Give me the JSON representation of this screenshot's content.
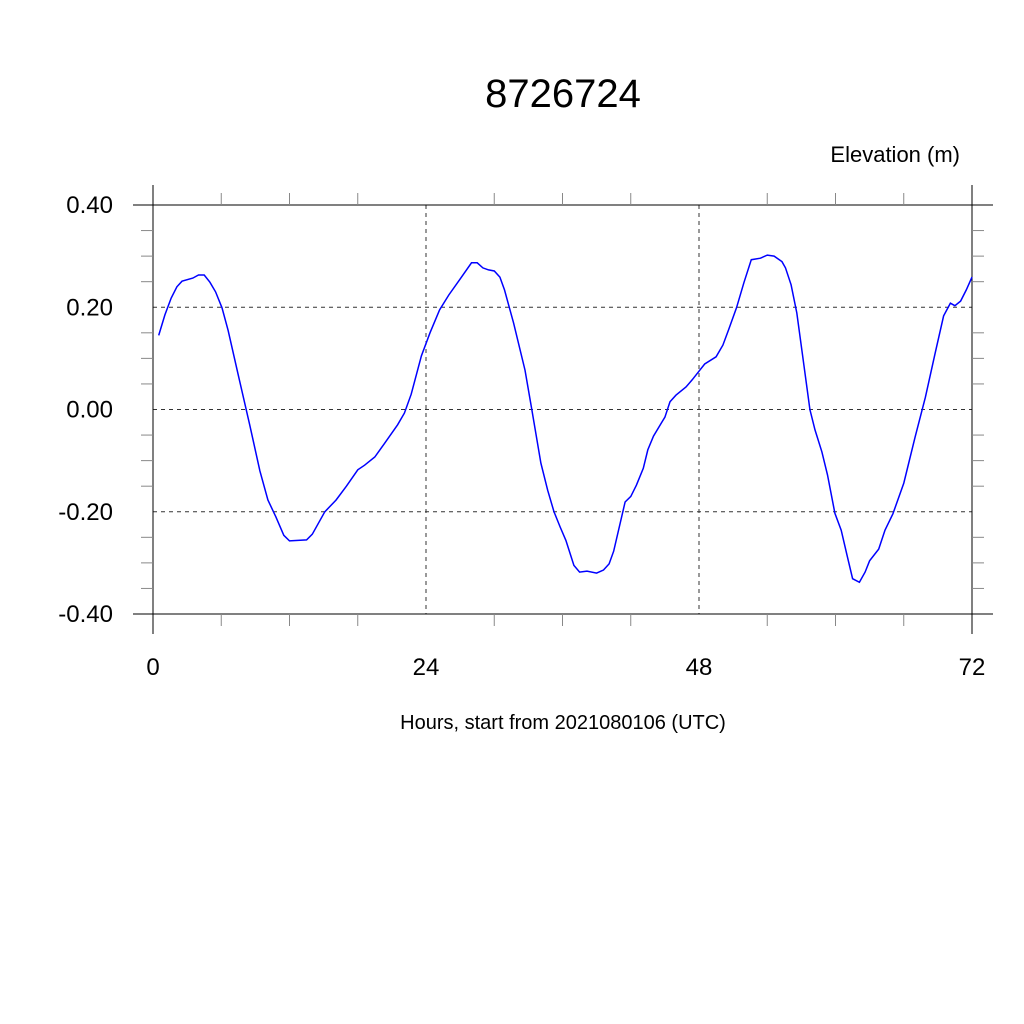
{
  "chart_data": {
    "type": "line",
    "title": "8726724",
    "ylabel": "Elevation (m)",
    "xlabel": "Hours, start from 2021080106 (UTC)",
    "xlim": [
      0,
      72
    ],
    "ylim": [
      -0.4,
      0.4
    ],
    "xticks": [
      0,
      24,
      48,
      72
    ],
    "xtick_labels": [
      "0",
      "24",
      "48",
      "72"
    ],
    "yticks": [
      0.4,
      0.2,
      0.0,
      -0.2,
      -0.4
    ],
    "ytick_labels": [
      "0.40",
      "0.20",
      "0.00",
      "-0.20",
      "-0.40"
    ],
    "grid": true,
    "line_color": "#0000ff",
    "series": [
      {
        "x": [
          0.5,
          1.05,
          1.6,
          2.1,
          2.55,
          3.5,
          4.0,
          4.5,
          5.0,
          5.5,
          6.07,
          6.6,
          7.5,
          8.5,
          9.4,
          10.1,
          10.8,
          11.5,
          12.0,
          13.5,
          14.0,
          15.1,
          16.1,
          17.0,
          18.0,
          18.6,
          19.5,
          20.3,
          21.5,
          22.1,
          22.7,
          23.6,
          24.35,
          25.2,
          26.0,
          27.0,
          28.0,
          28.5,
          29.0,
          29.5,
          30.0,
          30.5,
          30.9,
          31.7,
          32.7,
          33.3,
          34.1,
          34.7,
          35.25,
          35.8,
          36.3,
          37.0,
          37.5,
          38.15,
          39.0,
          39.6,
          40.1,
          40.5,
          41.5,
          42.0,
          42.5,
          43.1,
          43.5,
          44.0,
          44.7,
          45.0,
          45.45,
          45.97,
          46.86,
          47.4,
          48.0,
          48.5,
          49.5,
          50.1,
          50.6,
          51.3,
          51.95,
          52.6,
          53.4,
          54.0,
          54.6,
          55.3,
          55.6,
          56.1,
          56.6,
          57.1,
          57.75,
          58.2,
          58.8,
          59.3,
          59.95,
          60.5,
          61.0,
          61.5,
          62.1,
          62.6,
          63.0,
          63.8,
          64.35,
          65.05,
          66.0,
          67.0,
          67.9,
          68.75,
          69.5,
          70.1,
          70.5,
          71.0,
          71.5,
          72.0
        ],
        "y": [
          0.145,
          0.185,
          0.218,
          0.24,
          0.251,
          0.257,
          0.263,
          0.263,
          0.249,
          0.23,
          0.199,
          0.155,
          0.067,
          -0.03,
          -0.12,
          -0.177,
          -0.21,
          -0.246,
          -0.257,
          -0.255,
          -0.244,
          -0.2,
          -0.177,
          -0.15,
          -0.118,
          -0.109,
          -0.093,
          -0.068,
          -0.03,
          -0.007,
          0.03,
          0.105,
          0.15,
          0.195,
          0.224,
          0.255,
          0.287,
          0.287,
          0.277,
          0.273,
          0.271,
          0.259,
          0.234,
          0.169,
          0.077,
          0.0,
          -0.105,
          -0.158,
          -0.2,
          -0.23,
          -0.256,
          -0.305,
          -0.318,
          -0.316,
          -0.32,
          -0.314,
          -0.302,
          -0.277,
          -0.181,
          -0.17,
          -0.148,
          -0.115,
          -0.079,
          -0.052,
          -0.026,
          -0.015,
          0.015,
          0.028,
          0.044,
          0.058,
          0.075,
          0.089,
          0.103,
          0.126,
          0.156,
          0.199,
          0.248,
          0.293,
          0.296,
          0.302,
          0.3,
          0.289,
          0.277,
          0.244,
          0.189,
          0.107,
          0.0,
          -0.04,
          -0.083,
          -0.128,
          -0.203,
          -0.236,
          -0.284,
          -0.331,
          -0.338,
          -0.318,
          -0.296,
          -0.273,
          -0.236,
          -0.204,
          -0.144,
          -0.054,
          0.024,
          0.109,
          0.183,
          0.208,
          0.203,
          0.212,
          0.234,
          0.259
        ]
      }
    ]
  }
}
